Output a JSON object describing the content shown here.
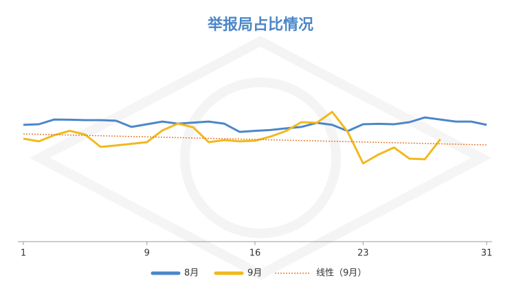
{
  "chart_data": {
    "type": "line",
    "title": "举报局占比情况",
    "x": [
      1,
      2,
      3,
      4,
      5,
      6,
      7,
      8,
      9,
      10,
      11,
      12,
      13,
      14,
      15,
      16,
      17,
      18,
      19,
      20,
      21,
      22,
      23,
      24,
      25,
      26,
      27,
      28,
      29,
      30,
      31
    ],
    "series": [
      {
        "name": "8月",
        "color": "#4a86c8",
        "values": [
          56.7,
          57,
          59.3,
          59.2,
          59,
          59,
          58.7,
          55.7,
          57,
          58.3,
          57.3,
          57.8,
          58.3,
          57.3,
          53.3,
          53.8,
          54.2,
          55,
          55.7,
          57.7,
          56.7,
          53.7,
          57,
          57.2,
          57,
          58,
          60.3,
          59.3,
          58.3,
          58.3,
          56.7
        ]
      },
      {
        "name": "9月",
        "color": "#f2b81c",
        "values": [
          50,
          48.7,
          51.7,
          53.8,
          52,
          46,
          46.7,
          47.5,
          48.3,
          54,
          57.3,
          55.5,
          48.3,
          49.3,
          48.7,
          49,
          51,
          53.7,
          58,
          57.7,
          63,
          53.3,
          38,
          42.3,
          45.7,
          40.3,
          40,
          49.7,
          null,
          null,
          null
        ]
      },
      {
        "name": "线性（9月）",
        "color": "#e8782c",
        "style": "dotted",
        "values": [
          52.3,
          52.12,
          51.94,
          51.77,
          51.59,
          51.41,
          51.23,
          51.05,
          50.88,
          50.7,
          50.52,
          50.34,
          50.16,
          49.99,
          49.81,
          49.63,
          49.45,
          49.27,
          49.1,
          48.92,
          48.74,
          48.56,
          48.38,
          48.21,
          48.03,
          47.85,
          47.67,
          47.49,
          47.32,
          47.14,
          46.96
        ]
      }
    ],
    "xlim": [
      1,
      31
    ],
    "xticks": [
      1,
      9,
      16,
      23,
      31
    ],
    "ylim": [
      0,
      100
    ]
  }
}
